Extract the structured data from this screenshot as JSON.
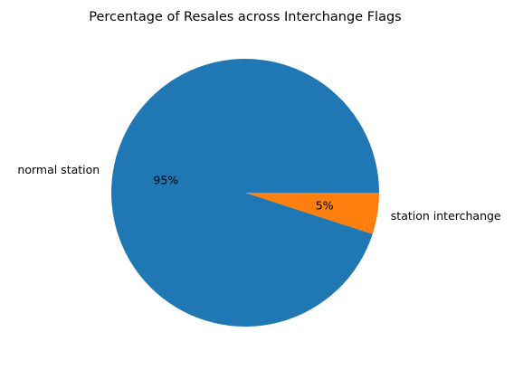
{
  "chart_data": {
    "type": "pie",
    "title": "Percentage of Resales across Interchange Flags",
    "slices": [
      {
        "label": "normal station",
        "value": 95,
        "pct_label": "95%",
        "color": "#1f77b4"
      },
      {
        "label": "station interchange",
        "value": 5,
        "pct_label": "5%",
        "color": "#ff7f0e"
      }
    ],
    "start_angle_deg": 0,
    "direction": "counterclockwise",
    "legend": "none"
  }
}
